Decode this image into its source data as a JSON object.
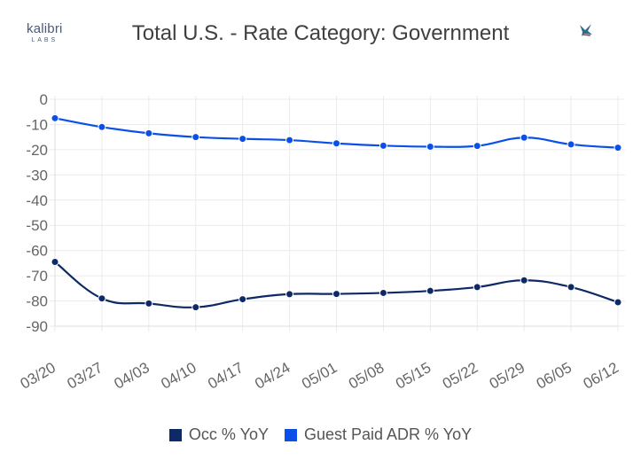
{
  "logo": {
    "name": "kalibri",
    "sub": "LABS"
  },
  "chart_data": {
    "type": "line",
    "title": "Total U.S. - Rate Category: Government",
    "categories": [
      "03/20",
      "03/27",
      "04/03",
      "04/10",
      "04/17",
      "04/24",
      "05/01",
      "05/08",
      "05/15",
      "05/22",
      "05/29",
      "06/05",
      "06/12"
    ],
    "series": [
      {
        "name": "Occ % YoY",
        "color": "#0e2a66",
        "values": [
          -64.5,
          -79,
          -81,
          -82.5,
          -79.3,
          -77.3,
          -77.2,
          -76.8,
          -76,
          -74.5,
          -71.8,
          -74.5,
          -80.5
        ]
      },
      {
        "name": "Guest Paid ADR % YoY",
        "color": "#0a50e8",
        "values": [
          -7.5,
          -11,
          -13.5,
          -15,
          -15.7,
          -16.2,
          -17.5,
          -18.4,
          -18.8,
          -18.5,
          -15.2,
          -17.9,
          -19.2
        ]
      }
    ],
    "yticks": [
      0,
      -10,
      -20,
      -30,
      -40,
      -50,
      -60,
      -70,
      -80,
      -90
    ],
    "ylim": [
      -90,
      0
    ],
    "grid": true,
    "legend": "bottom"
  }
}
